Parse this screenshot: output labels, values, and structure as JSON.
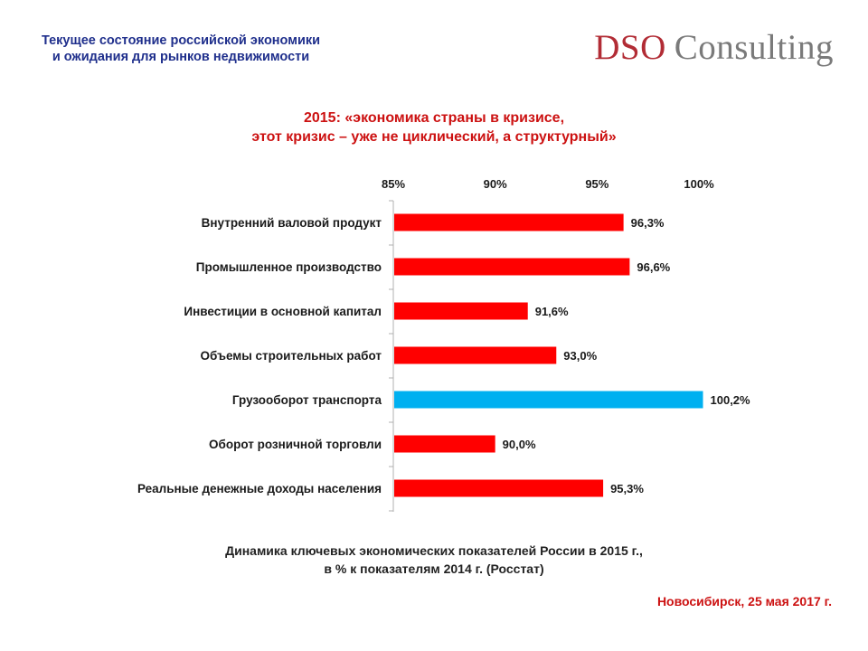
{
  "header": {
    "title_line1": "Текущее состояние российской экономики",
    "title_line2": "и ожидания для рынков недвижимости"
  },
  "logo": {
    "brand": "DSO",
    "word": "Consulting"
  },
  "chart_data": {
    "type": "bar",
    "orientation": "horizontal",
    "title": "2015: «экономика страны в кризисе, этот кризис – уже не циклический, а структурный»",
    "title_line1": "2015: «экономика страны в кризисе,",
    "title_line2": "этот кризис – уже не циклический, а структурный»",
    "categories": [
      "Внутренний валовой продукт",
      "Промышленное производство",
      "Инвестиции в основной капитал",
      "Объемы строительных работ",
      "Грузооборот транспорта",
      "Оборот розничной торговли",
      "Реальные денежные доходы населения"
    ],
    "values": [
      96.3,
      96.6,
      91.6,
      93.0,
      100.2,
      90.0,
      95.3
    ],
    "value_labels": [
      "96,3%",
      "96,6%",
      "91,6%",
      "93,0%",
      "100,2%",
      "90,0%",
      "95,3%"
    ],
    "xlim": [
      85,
      100
    ],
    "xticks": [
      85,
      90,
      95,
      100
    ],
    "xtick_labels": [
      "85%",
      "90%",
      "95%",
      "100%"
    ],
    "axis_position": "top",
    "grid": false,
    "legend": "none",
    "colors": {
      "default": "#ff0000",
      "highlight": "#00b0f0",
      "highlight_index": 4
    }
  },
  "caption": {
    "line1": "Динамика ключевых экономических показателей России в 2015 г.,",
    "line2": "в % к показателям 2014 г. (Росстат)"
  },
  "footer": {
    "text": "Новосибирск, 25 мая 2017 г."
  }
}
